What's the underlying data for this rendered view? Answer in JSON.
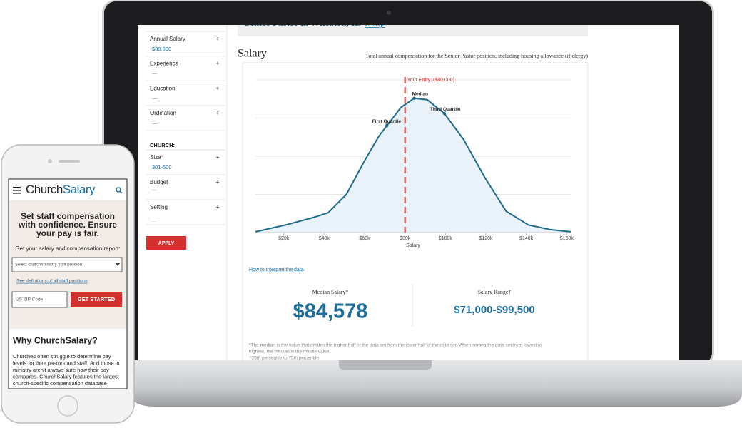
{
  "chart_data": {
    "type": "area",
    "x_label": "Salary",
    "x": [
      6000,
      21000,
      35000,
      42000,
      51000,
      60000,
      67000,
      71000,
      78000,
      84578,
      91000,
      99500,
      109000,
      119500,
      130000,
      141000,
      151500,
      162000
    ],
    "values": [
      0.5,
      5,
      10,
      13,
      25,
      47,
      63,
      70,
      82,
      88,
      87,
      78,
      61,
      36,
      14,
      5,
      2,
      0.5
    ],
    "color": "#1d6a8a",
    "fill": "#e9f1f9",
    "xlim": [
      6000,
      162000
    ],
    "xticks": [
      {
        "value": 20000,
        "label": "$20k"
      },
      {
        "value": 40000,
        "label": "$40k"
      },
      {
        "value": 60000,
        "label": "$60k"
      },
      {
        "value": 80000,
        "label": "$80k"
      },
      {
        "value": 100000,
        "label": "$100k"
      },
      {
        "value": 120000,
        "label": "$120k"
      },
      {
        "value": 140000,
        "label": "$140k"
      },
      {
        "value": 160000,
        "label": "$160k"
      }
    ],
    "ylim": [
      0,
      100
    ],
    "yticks": [
      0,
      25,
      50,
      75,
      100
    ],
    "grid": true,
    "reference": {
      "label": "Your Entry: ($80,000)",
      "x": 80000,
      "color": "#d3302f"
    },
    "markers": [
      {
        "label": "First Quartile",
        "x": 71000,
        "y": 70
      },
      {
        "label": "Median",
        "x": 84578,
        "y": 88
      },
      {
        "label": "Third Quartile",
        "x": 99500,
        "y": 78
      }
    ]
  },
  "laptop": {
    "position": "Senior Pastor in Wheaton, IL",
    "change": "Change",
    "expand": "+",
    "filters": [
      {
        "label": "Annual Salary",
        "value": "$80,000"
      },
      {
        "label": "Experience",
        "value": "—"
      },
      {
        "label": "Education",
        "value": "—"
      },
      {
        "label": "Ordination",
        "value": "—"
      }
    ],
    "church_heading": "CHURCH:",
    "church_filters": [
      {
        "label": "Size",
        "mark": "*",
        "value": "301-500"
      },
      {
        "label": "Budget",
        "value": "—"
      },
      {
        "label": "Setting",
        "value": "—"
      }
    ],
    "apply": "APPLY",
    "section_title": "Salary",
    "section_subtitle": "Total annual compensation for the Senior Pastor position, including housing allowance (if clergy)",
    "interpret_link": "How to interpret the data",
    "stats": [
      {
        "label": "Median Salary*",
        "value": "$84,578"
      },
      {
        "label": "Salary Range†",
        "value": "$71,000-$99,500"
      }
    ],
    "footnotes": [
      "*The median is the value that divides the higher half of the data set from the lower half of the data set. When sorting the data set from lowest to",
      "highest, the median is the middle value.",
      "†25th percentile to 75th percentile"
    ]
  },
  "phone": {
    "brand_first": "Church",
    "brand_second": "Salary",
    "hero": [
      "Set staff compensation",
      "with confidence. Ensure",
      "your pay is fair."
    ],
    "report_prompt": "Get your salary and compensation report:",
    "select_placeholder": "Select church/ministry staff position",
    "definitions_link": "See definitions of all staff positions",
    "zip_placeholder": "US ZIP Code",
    "cta": "GET STARTED",
    "why_title": "Why ChurchSalary?",
    "why_text": [
      "Churches often struggle to determine pay",
      "levels for their pastors and staff. And those in",
      "ministry aren't always sure how their pay",
      "compares. ChurchSalary features the largest",
      "church-specific compensation database"
    ]
  }
}
